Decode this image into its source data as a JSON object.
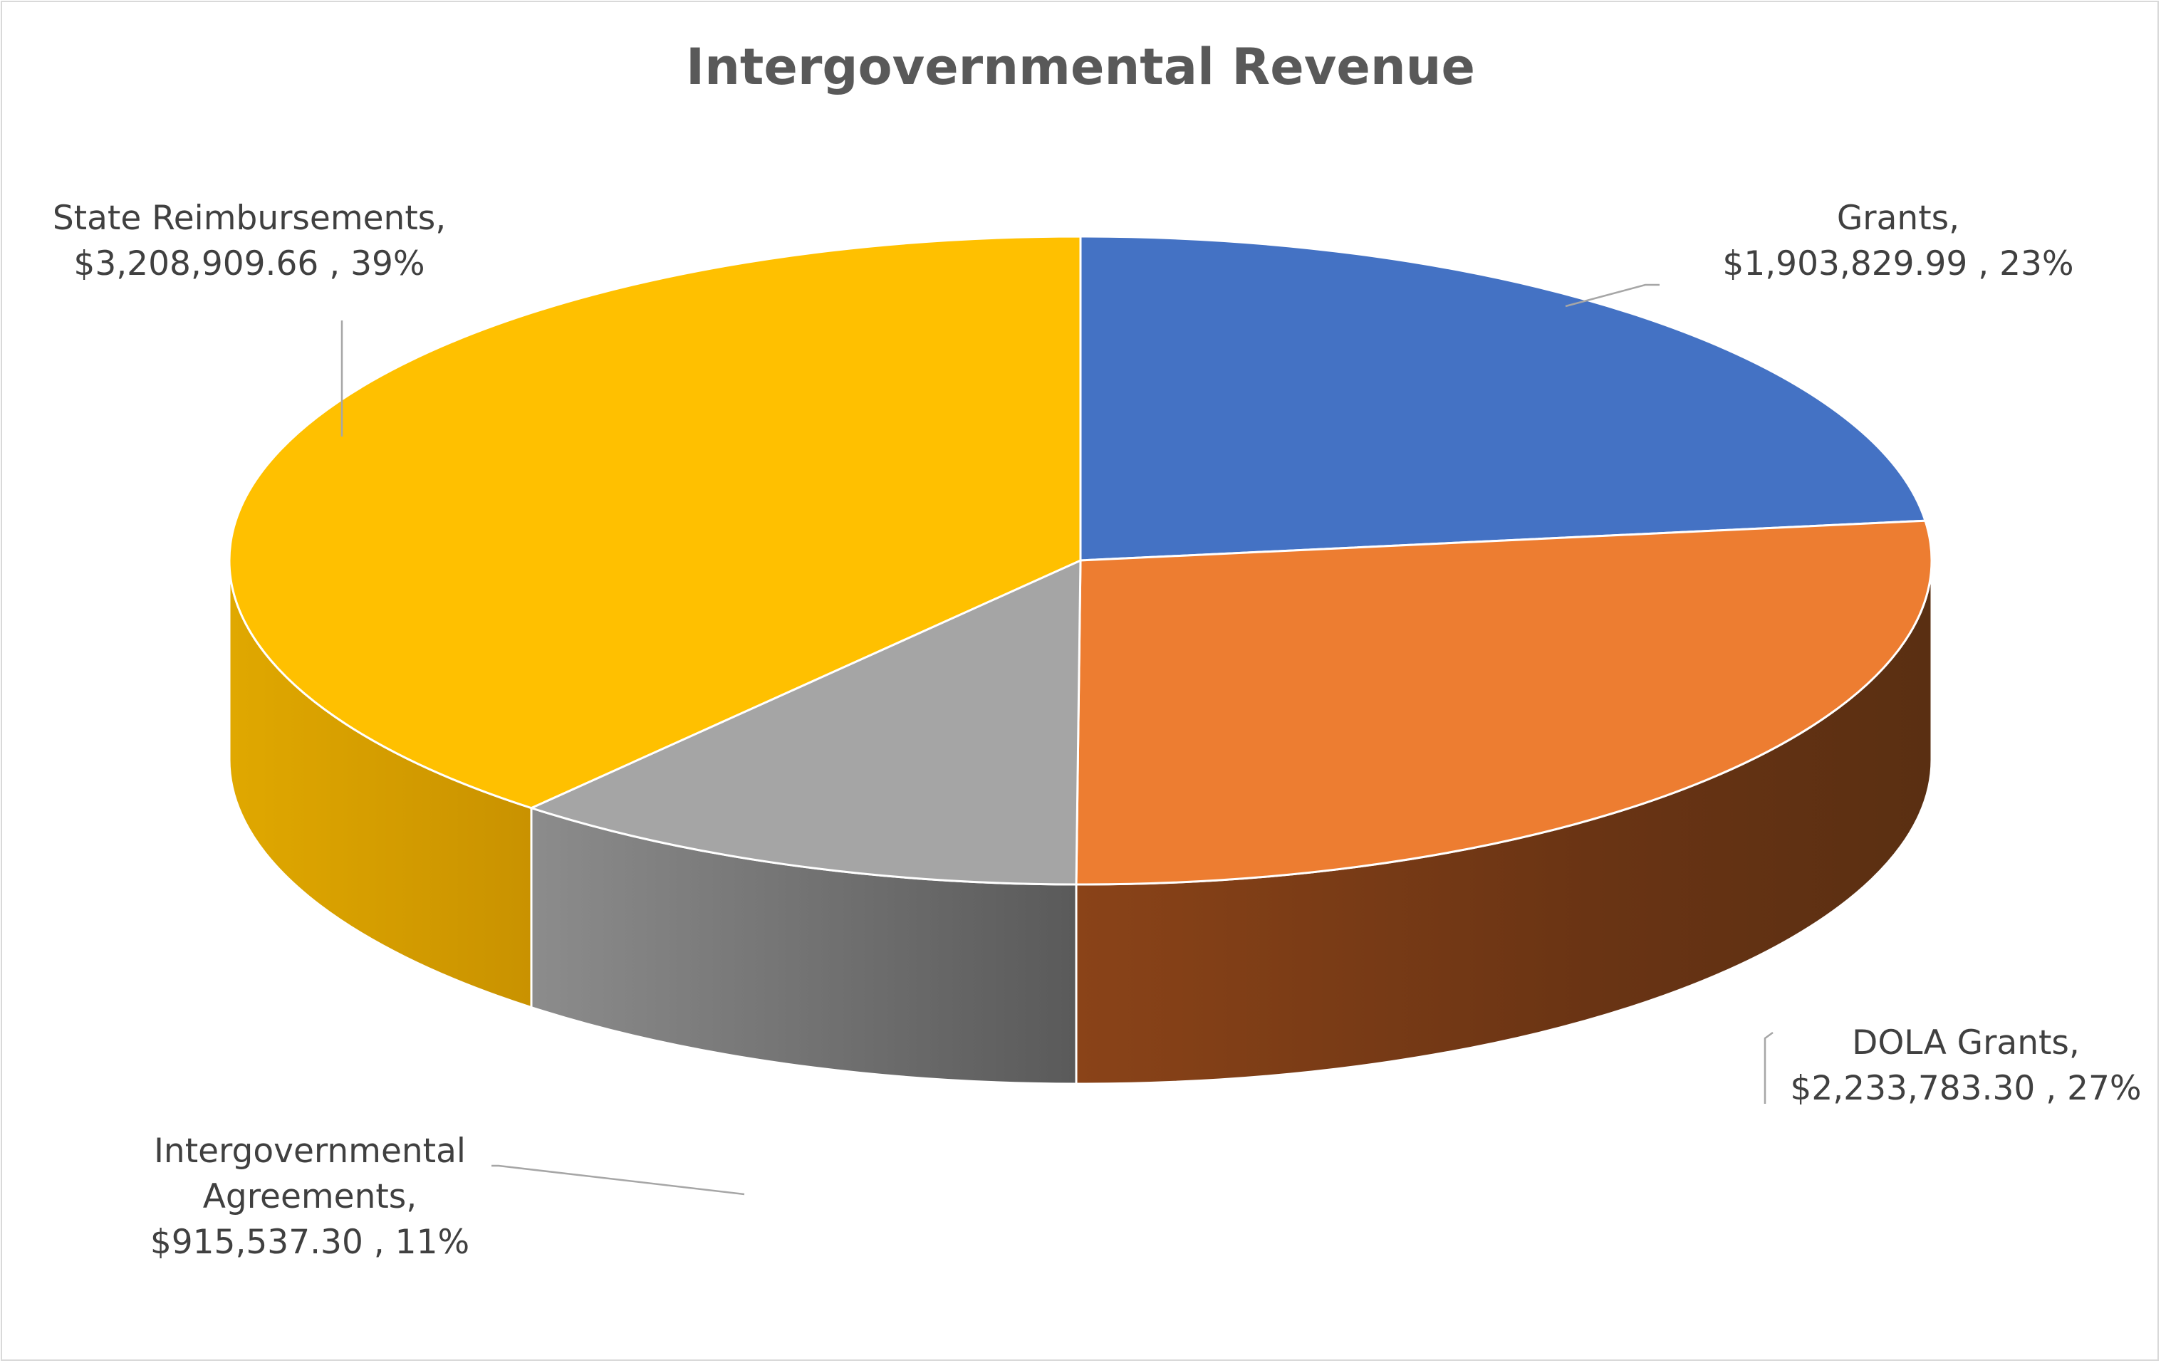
{
  "chart_data": {
    "type": "pie",
    "title": "Intergovernmental Revenue",
    "slices": [
      {
        "name": "Grants",
        "value": 1903829.99,
        "value_label": "$1,903,829.99",
        "percent_label": "23%",
        "color": "#4472C4",
        "side_color": "#2F528F",
        "label_lines": [
          "Grants,",
          "$1,903,829.99 , 23%"
        ]
      },
      {
        "name": "DOLA Grants",
        "value": 2233783.3,
        "value_label": "$2,233,783.30",
        "percent_label": "27%",
        "color": "#ED7D31",
        "side_color": "#843C0C",
        "label_lines": [
          "DOLA Grants,",
          "$2,233,783.30 , 27%"
        ]
      },
      {
        "name": "Intergovernmental Agreements",
        "value": 915537.3,
        "value_label": "$915,537.30",
        "percent_label": "11%",
        "color": "#A5A5A5",
        "side_color": "#7F7F7F",
        "label_lines": [
          "Intergovernmental",
          "Agreements,",
          "$915,537.30 , 11%"
        ]
      },
      {
        "name": "State Reimbursements",
        "value": 3208909.66,
        "value_label": "$3,208,909.66",
        "percent_label": "39%",
        "color": "#FFC000",
        "side_color": "#D49E00",
        "label_lines": [
          "State Reimbursements,",
          "$3,208,909.66 , 39%"
        ]
      }
    ],
    "style": "3d-pie",
    "legend": "none"
  }
}
